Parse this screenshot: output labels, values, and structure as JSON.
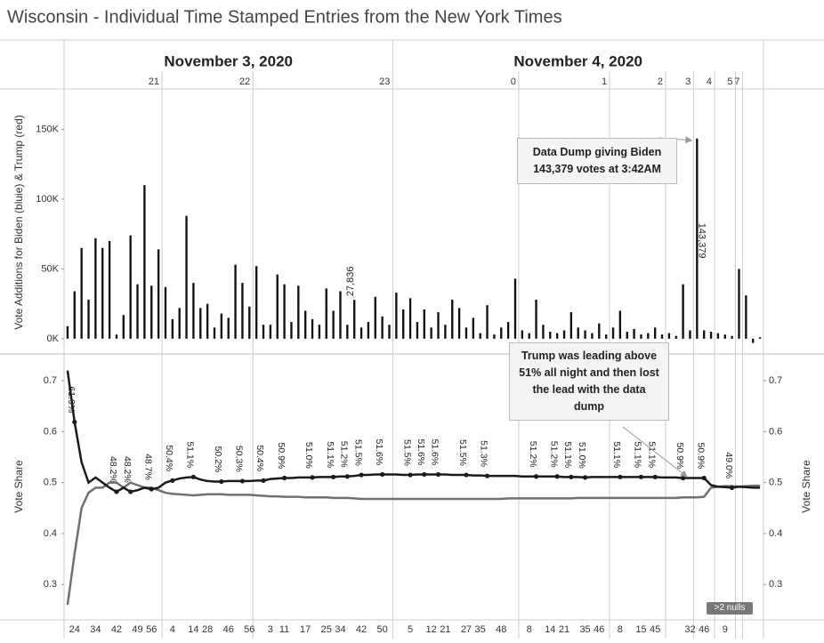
{
  "title": "Wisconsin - Individual Time Stamped Entries from the New York Times",
  "chart_data": [
    {
      "type": "bar",
      "ylabel": "Vote Additions for Biden (bluie) & Trump (red)",
      "color": "#111111",
      "ylim": [
        -9000,
        177000
      ],
      "yticks": [
        {
          "value": 0,
          "label": "0K"
        },
        {
          "value": 50000,
          "label": "50K"
        },
        {
          "value": 100000,
          "label": "100K"
        },
        {
          "value": 150000,
          "label": "150K"
        }
      ],
      "days": [
        "November 3, 2020",
        null,
        null,
        null,
        null,
        null,
        null,
        null,
        null,
        null,
        null,
        null,
        null,
        null,
        null,
        null,
        null,
        null,
        null,
        null,
        null,
        null,
        null,
        null,
        null,
        null,
        null,
        null,
        null,
        null,
        null,
        null,
        null,
        null,
        null,
        null,
        null,
        null,
        null,
        null,
        null,
        null,
        null,
        null,
        null,
        null,
        null,
        "November 4, 2020",
        null,
        null,
        null,
        null,
        null,
        null,
        null,
        null,
        null,
        null,
        null,
        null,
        null,
        null,
        null,
        null,
        null,
        null,
        null,
        null,
        null,
        null,
        null,
        null,
        null,
        null,
        null,
        null,
        null,
        null,
        null,
        null,
        null,
        null,
        null,
        null,
        null,
        null,
        null,
        null,
        null,
        null,
        null,
        null,
        null,
        null,
        null,
        null,
        null,
        null,
        null,
        null
      ],
      "hours": [
        null,
        null,
        null,
        null,
        null,
        null,
        null,
        null,
        null,
        null,
        null,
        null,
        null,
        null,
        "21",
        null,
        null,
        null,
        null,
        null,
        null,
        null,
        null,
        null,
        null,
        null,
        null,
        "22",
        null,
        null,
        null,
        null,
        null,
        null,
        null,
        null,
        null,
        null,
        null,
        null,
        null,
        null,
        null,
        null,
        null,
        null,
        null,
        "23",
        null,
        null,
        null,
        null,
        null,
        null,
        null,
        null,
        null,
        null,
        null,
        null,
        null,
        null,
        null,
        null,
        null,
        "0",
        null,
        null,
        null,
        null,
        null,
        null,
        null,
        null,
        null,
        null,
        null,
        null,
        "1",
        null,
        null,
        null,
        null,
        null,
        null,
        null,
        "2",
        null,
        null,
        null,
        "3",
        null,
        null,
        "4",
        null,
        null,
        "5",
        "7",
        null,
        null
      ],
      "values": [
        9000,
        34000,
        65000,
        28000,
        72000,
        65000,
        70000,
        3000,
        17000,
        74000,
        39000,
        110000,
        38000,
        64000,
        37000,
        14000,
        22000,
        88000,
        40000,
        22000,
        25000,
        8000,
        18000,
        15000,
        53000,
        40000,
        23000,
        52000,
        10000,
        10000,
        46000,
        39000,
        12000,
        38000,
        20000,
        14000,
        10000,
        36000,
        20000,
        34000,
        10000,
        27836,
        8000,
        12000,
        30000,
        16000,
        10000,
        33000,
        21000,
        29000,
        12000,
        21000,
        8000,
        19000,
        10000,
        28000,
        22000,
        8000,
        15000,
        4000,
        24000,
        3000,
        8000,
        12000,
        43000,
        6000,
        4000,
        28000,
        10000,
        5000,
        4000,
        6000,
        19000,
        8000,
        6000,
        4000,
        11000,
        3000,
        8000,
        20000,
        5000,
        7000,
        3000,
        4000,
        8000,
        3000,
        4000,
        2000,
        39000,
        6000,
        143379,
        6000,
        5000,
        4000,
        3000,
        2000,
        50000,
        31000,
        -3000,
        1000
      ],
      "value_labels": [
        null,
        null,
        null,
        null,
        null,
        null,
        null,
        null,
        null,
        null,
        null,
        null,
        null,
        null,
        null,
        null,
        null,
        null,
        null,
        null,
        null,
        null,
        null,
        null,
        null,
        null,
        null,
        null,
        null,
        null,
        null,
        null,
        null,
        null,
        null,
        null,
        null,
        null,
        null,
        null,
        null,
        "27,836",
        null,
        null,
        null,
        null,
        null,
        null,
        null,
        null,
        null,
        null,
        null,
        null,
        null,
        null,
        null,
        null,
        null,
        null,
        null,
        null,
        null,
        null,
        null,
        null,
        null,
        null,
        null,
        null,
        null,
        null,
        null,
        null,
        null,
        null,
        null,
        null,
        null,
        null,
        null,
        null,
        null,
        null,
        null,
        null,
        null,
        null,
        null,
        null,
        "143,379",
        null,
        null,
        null,
        null,
        null,
        null,
        null,
        null,
        null
      ],
      "annotation": "Data Dump giving Biden 143,379 votes at 3:42AM"
    },
    {
      "type": "line",
      "ylabel": "Vote Share",
      "y2label": "Vote Share",
      "ylim": [
        0.234,
        0.749
      ],
      "yticks": [
        0.3,
        0.4,
        0.5,
        0.6,
        0.7
      ],
      "y2lim": [
        0.234,
        0.749
      ],
      "y2ticks": [
        0.3,
        0.4,
        0.5,
        0.6,
        0.7
      ],
      "categories": [
        null,
        "24",
        null,
        null,
        "34",
        null,
        null,
        "42",
        null,
        null,
        "49",
        null,
        "56",
        null,
        null,
        "4",
        null,
        null,
        "14",
        null,
        "28",
        null,
        null,
        "46",
        null,
        null,
        "56",
        null,
        null,
        "3",
        null,
        "11",
        null,
        null,
        "17",
        null,
        null,
        "25",
        null,
        "34",
        null,
        null,
        "42",
        null,
        null,
        "50",
        null,
        null,
        null,
        "5",
        null,
        null,
        "12",
        null,
        "21",
        null,
        null,
        "27",
        null,
        "35",
        null,
        null,
        "48",
        null,
        null,
        null,
        "8",
        null,
        null,
        "14",
        null,
        "21",
        null,
        null,
        "35",
        null,
        "46",
        null,
        null,
        "8",
        null,
        null,
        "15",
        null,
        "45",
        null,
        null,
        null,
        null,
        "32",
        null,
        "46",
        null,
        null,
        "9",
        null,
        null,
        null,
        null,
        null
      ],
      "series": [
        {
          "color": "#1a1a1a",
          "values": [
            0.72,
            0.619,
            0.54,
            0.5,
            0.51,
            0.5,
            0.49,
            0.482,
            0.49,
            0.482,
            0.485,
            0.49,
            0.487,
            0.49,
            0.5,
            0.504,
            0.508,
            0.51,
            0.511,
            0.506,
            0.503,
            0.502,
            0.502,
            0.503,
            0.503,
            0.503,
            0.503,
            0.504,
            0.504,
            0.507,
            0.508,
            0.509,
            0.509,
            0.51,
            0.51,
            0.51,
            0.511,
            0.511,
            0.511,
            0.512,
            0.512,
            0.513,
            0.515,
            0.515,
            0.516,
            0.516,
            0.516,
            0.516,
            0.515,
            0.515,
            0.516,
            0.516,
            0.516,
            0.516,
            0.516,
            0.515,
            0.515,
            0.515,
            0.514,
            0.514,
            0.513,
            0.513,
            0.513,
            0.513,
            0.513,
            0.512,
            0.512,
            0.512,
            0.512,
            0.512,
            0.512,
            0.511,
            0.511,
            0.511,
            0.51,
            0.511,
            0.511,
            0.511,
            0.511,
            0.511,
            0.511,
            0.511,
            0.511,
            0.511,
            0.511,
            0.51,
            0.51,
            0.51,
            0.509,
            0.509,
            0.509,
            0.509,
            0.495,
            0.492,
            0.491,
            0.49,
            0.492,
            0.491,
            0.49,
            0.49
          ],
          "value_labels": [
            null,
            "61.9%",
            null,
            null,
            null,
            null,
            null,
            "48.2%",
            null,
            "48.2%",
            null,
            null,
            "48.7%",
            null,
            null,
            "50.4%",
            null,
            null,
            "51.1%",
            null,
            null,
            null,
            "50.2%",
            null,
            null,
            "50.3%",
            null,
            null,
            "50.4%",
            null,
            null,
            "50.9%",
            null,
            null,
            null,
            "51.0%",
            null,
            null,
            "51.1%",
            null,
            "51.2%",
            null,
            "51.5%",
            null,
            null,
            "51.6%",
            null,
            null,
            null,
            "51.5%",
            null,
            "51.6%",
            null,
            "51.6%",
            null,
            null,
            null,
            "51.5%",
            null,
            null,
            "51.3%",
            null,
            null,
            null,
            null,
            null,
            null,
            "51.2%",
            null,
            null,
            "51.2%",
            null,
            "51.1%",
            null,
            "51.0%",
            null,
            null,
            null,
            null,
            "51.1%",
            null,
            null,
            "51.1%",
            null,
            "51.1%",
            null,
            null,
            null,
            "50.9%",
            null,
            null,
            "50.9%",
            null,
            null,
            null,
            "49.0%",
            null,
            null,
            null,
            null
          ]
        },
        {
          "color": "#707070",
          "values": [
            0.26,
            0.36,
            0.45,
            0.48,
            0.49,
            0.49,
            0.5,
            0.5,
            0.49,
            0.5,
            0.495,
            0.49,
            0.49,
            0.485,
            0.48,
            0.478,
            0.477,
            0.476,
            0.475,
            0.476,
            0.477,
            0.477,
            0.477,
            0.476,
            0.476,
            0.476,
            0.476,
            0.475,
            0.474,
            0.473,
            0.473,
            0.472,
            0.472,
            0.472,
            0.471,
            0.471,
            0.471,
            0.471,
            0.47,
            0.47,
            0.47,
            0.469,
            0.468,
            0.468,
            0.468,
            0.468,
            0.468,
            0.468,
            0.468,
            0.468,
            0.468,
            0.468,
            0.468,
            0.468,
            0.468,
            0.468,
            0.468,
            0.468,
            0.468,
            0.468,
            0.468,
            0.468,
            0.468,
            0.469,
            0.469,
            0.469,
            0.469,
            0.469,
            0.469,
            0.469,
            0.469,
            0.469,
            0.469,
            0.47,
            0.47,
            0.47,
            0.47,
            0.47,
            0.47,
            0.47,
            0.47,
            0.47,
            0.47,
            0.47,
            0.47,
            0.47,
            0.47,
            0.47,
            0.471,
            0.471,
            0.471,
            0.472,
            0.49,
            0.492,
            0.493,
            0.493,
            0.492,
            0.493,
            0.494,
            0.494
          ]
        }
      ],
      "annotation": "Trump was leading above 51% all night and then lost the lead with the data dump",
      "note": ">2 nulls"
    }
  ]
}
